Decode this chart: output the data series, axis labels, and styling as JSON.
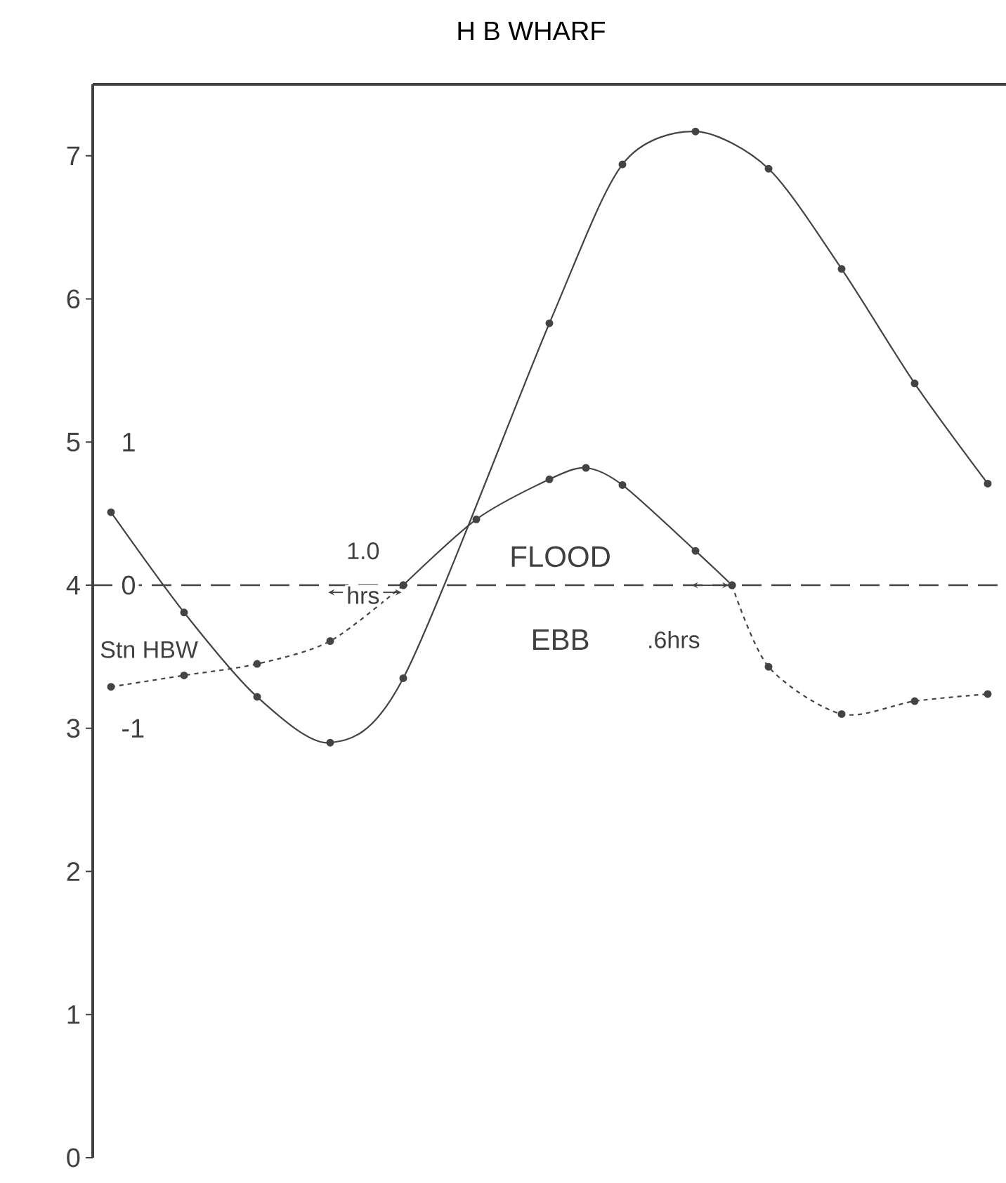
{
  "chart_data": {
    "type": "line",
    "title": "H B WHARF",
    "categories": [
      null,
      null,
      null,
      null,
      null,
      null,
      null,
      null,
      null,
      null,
      null,
      null,
      null,
      null,
      null,
      null,
      null,
      null,
      null,
      null,
      null,
      null,
      null,
      null,
      null
    ],
    "series": [
      {
        "color": "#444444",
        "line_style": "solid",
        "values": [
          4.51,
          null,
          3.81,
          null,
          3.22,
          null,
          2.9,
          null,
          3.35,
          null,
          null,
          null,
          5.83,
          null,
          6.94,
          null,
          7.17,
          null,
          6.91,
          null,
          6.21,
          null,
          5.41,
          null,
          4.71
        ]
      },
      {
        "color": "#444444",
        "axis": "y2",
        "line_style": "dotted",
        "values": [
          -0.71,
          null,
          -0.63,
          null,
          -0.55,
          null,
          -0.39,
          null,
          0,
          null,
          null,
          null,
          null,
          null,
          null,
          null,
          null,
          null,
          null,
          null,
          null,
          null,
          null,
          null,
          null
        ]
      },
      {
        "color": "#444444",
        "axis": "y2",
        "line_style": "solid",
        "values": [
          null,
          null,
          null,
          null,
          null,
          null,
          null,
          null,
          0,
          null,
          0.46,
          null,
          0.74,
          0.82,
          0.7,
          null,
          0.24,
          0,
          null,
          null,
          null,
          null,
          null,
          null,
          null
        ]
      },
      {
        "color": "#444444",
        "axis": "y2",
        "line_style": "dotted",
        "values": [
          null,
          null,
          null,
          null,
          null,
          null,
          null,
          null,
          null,
          null,
          null,
          null,
          null,
          null,
          null,
          null,
          null,
          0,
          -0.57,
          null,
          -0.9,
          null,
          -0.81,
          null,
          -0.76
        ]
      }
    ],
    "marker": "circle",
    "ylim": [
      0,
      7.5
    ],
    "yticks": [
      0,
      1,
      2,
      3,
      4,
      5,
      6,
      7
    ],
    "y2lim": [
      -4,
      3.5
    ],
    "y2ticks": [
      -1,
      0,
      1
    ],
    "tick_labels": "y",
    "ref_lines": [
      {
        "axis": "y2",
        "value": 0,
        "line_style": "dashed",
        "color": "#444444"
      }
    ],
    "annotations": [
      "Stn HBW",
      "1.0",
      "hrs",
      "FLOOD",
      "EBB",
      ".6hrs"
    ]
  }
}
